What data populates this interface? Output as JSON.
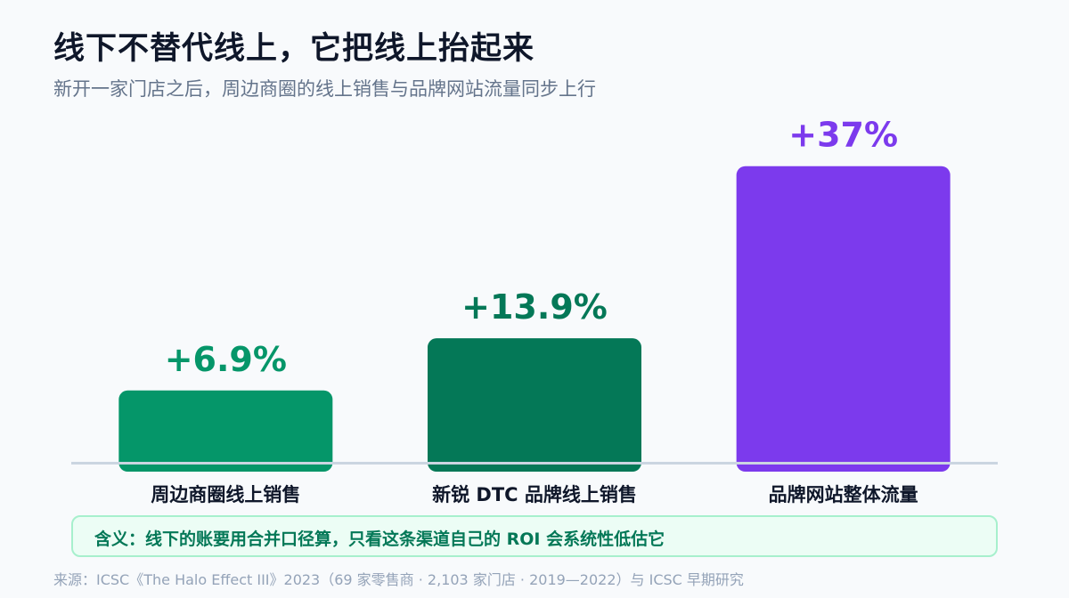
{
  "header": {
    "title": "线下不替代线上，它把线上抬起来",
    "subtitle": "新开一家门店之后，周边商圈的线上销售与品牌网站流量同步上行"
  },
  "chart_data": {
    "type": "bar",
    "categories": [
      "周边商圈线上销售",
      "新锐 DTC 品牌线上销售",
      "品牌网站整体流量"
    ],
    "values": [
      6.9,
      13.9,
      37
    ],
    "data_labels": [
      "+6.9%",
      "+13.9%",
      "+37%"
    ],
    "value_unit": "%",
    "ylim": [
      -2.8,
      39
    ],
    "grid": false,
    "legend": "none",
    "colors": [
      "#059669",
      "#047857",
      "#7c3aed"
    ]
  },
  "note": {
    "text": "含义：线下的账要用合并口径算，只看这条渠道自己的 ROI 会系统性低估它"
  },
  "footer": {
    "source": "来源：ICSC《The Halo Effect III》2023（69 家零售商 · 2,103 家门店 · 2019—2022）与 ICSC 早期研究"
  }
}
